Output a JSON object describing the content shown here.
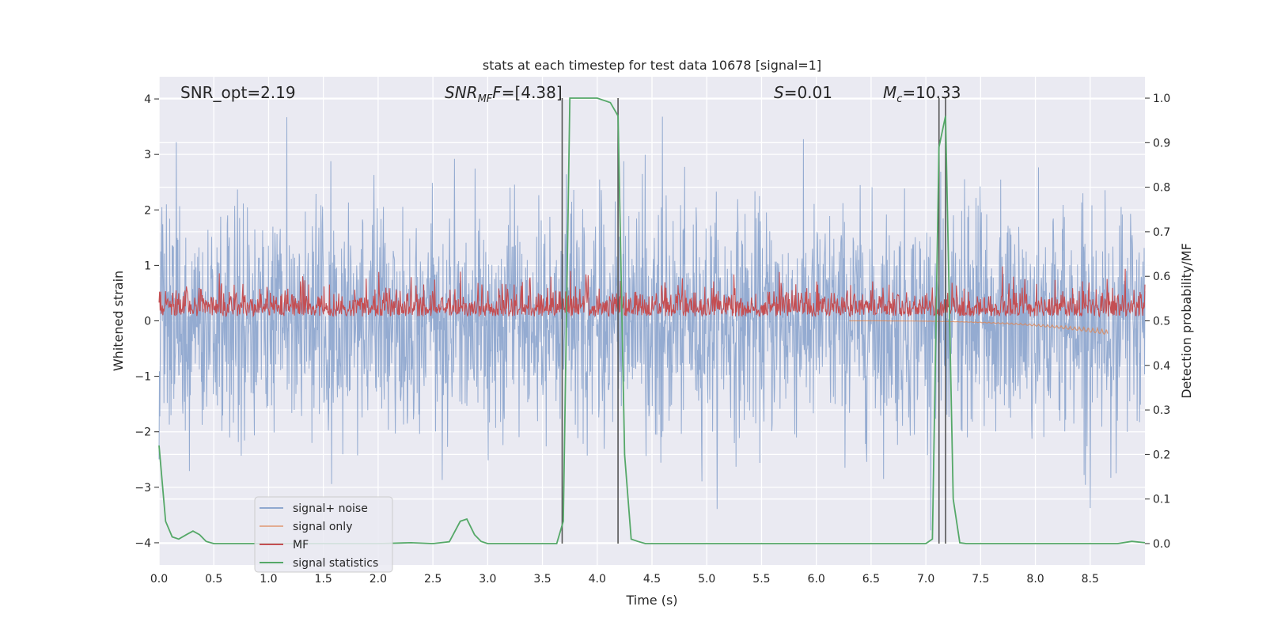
{
  "chart_data": {
    "type": "line",
    "title": "stats at each timestep for test data 10678 [signal=1]",
    "xlabel": "Time (s)",
    "ylabel": "Whitened strain",
    "y2label": "Detection probability/MF",
    "xlim": [
      0.0,
      9.0
    ],
    "ylim": [
      -4.4,
      4.4
    ],
    "y2lim": [
      -0.048,
      1.048
    ],
    "xticks": [
      "0.0",
      "0.5",
      "1.0",
      "1.5",
      "2.0",
      "2.5",
      "3.0",
      "3.5",
      "4.0",
      "4.5",
      "5.0",
      "5.5",
      "6.0",
      "6.5",
      "7.0",
      "7.5",
      "8.0",
      "8.5"
    ],
    "yticks": [
      "4",
      "3",
      "2",
      "1",
      "0",
      "−1",
      "−2",
      "−3",
      "−4"
    ],
    "y2ticks": [
      "1.0",
      "0.9",
      "0.8",
      "0.7",
      "0.6",
      "0.5",
      "0.4",
      "0.3",
      "0.2",
      "0.1",
      "0.0"
    ],
    "grid": true,
    "legend_position": "lower-left",
    "annotations": {
      "snr_opt": "SNR_opt=2.19",
      "snr_mf_main": "SNR",
      "snr_mf_sub": "MF",
      "snr_mf_value": "=[4.38]",
      "s_symbol": "S",
      "s_value": "=0.01",
      "mc_symbol": "M",
      "mc_sub": "c",
      "mc_value": "=10.33"
    },
    "vertical_markers": [
      3.68,
      4.19,
      7.12,
      7.18
    ],
    "series": [
      {
        "name": "signal+ noise",
        "color": "#8fa8cf",
        "axis": "left",
        "kind": "noise",
        "amplitude_rms": 1.0,
        "peak_range": [
          -3.9,
          3.7
        ]
      },
      {
        "name": "signal only",
        "color": "#dd8452",
        "axis": "left",
        "kind": "chirp",
        "x_range": [
          6.3,
          8.66
        ],
        "end_amplitude": -0.25
      },
      {
        "name": "MF",
        "color": "#c44e52",
        "axis": "right",
        "kind": "noise",
        "baseline": 0.52,
        "spread_range": [
          0.5,
          0.64
        ]
      },
      {
        "name": "signal statistics",
        "color": "#55a868",
        "axis": "right",
        "kind": "line",
        "x": [
          0.0,
          0.06,
          0.12,
          0.18,
          0.25,
          0.31,
          0.37,
          0.43,
          0.5,
          1.0,
          2.0,
          2.3,
          2.5,
          2.65,
          2.75,
          2.81,
          2.88,
          2.94,
          3.0,
          3.5,
          3.63,
          3.69,
          3.75,
          3.81,
          4.0,
          4.12,
          4.19,
          4.25,
          4.31,
          4.37,
          4.44,
          5.0,
          6.0,
          7.0,
          7.06,
          7.12,
          7.18,
          7.25,
          7.31,
          7.37,
          7.5,
          8.0,
          8.5,
          8.75,
          8.88,
          9.0
        ],
        "y": [
          0.22,
          0.05,
          0.015,
          0.01,
          0.02,
          0.028,
          0.02,
          0.005,
          0.0,
          0.0,
          0.0,
          0.002,
          0.0,
          0.004,
          0.05,
          0.055,
          0.02,
          0.005,
          0.0,
          0.0,
          0.0,
          0.05,
          1.0,
          1.0,
          1.0,
          0.99,
          0.96,
          0.2,
          0.01,
          0.005,
          0.0,
          0.0,
          0.0,
          0.0,
          0.01,
          0.89,
          0.96,
          0.1,
          0.002,
          0.0,
          0.0,
          0.0,
          0.0,
          0.0,
          0.005,
          0.002
        ]
      }
    ]
  }
}
